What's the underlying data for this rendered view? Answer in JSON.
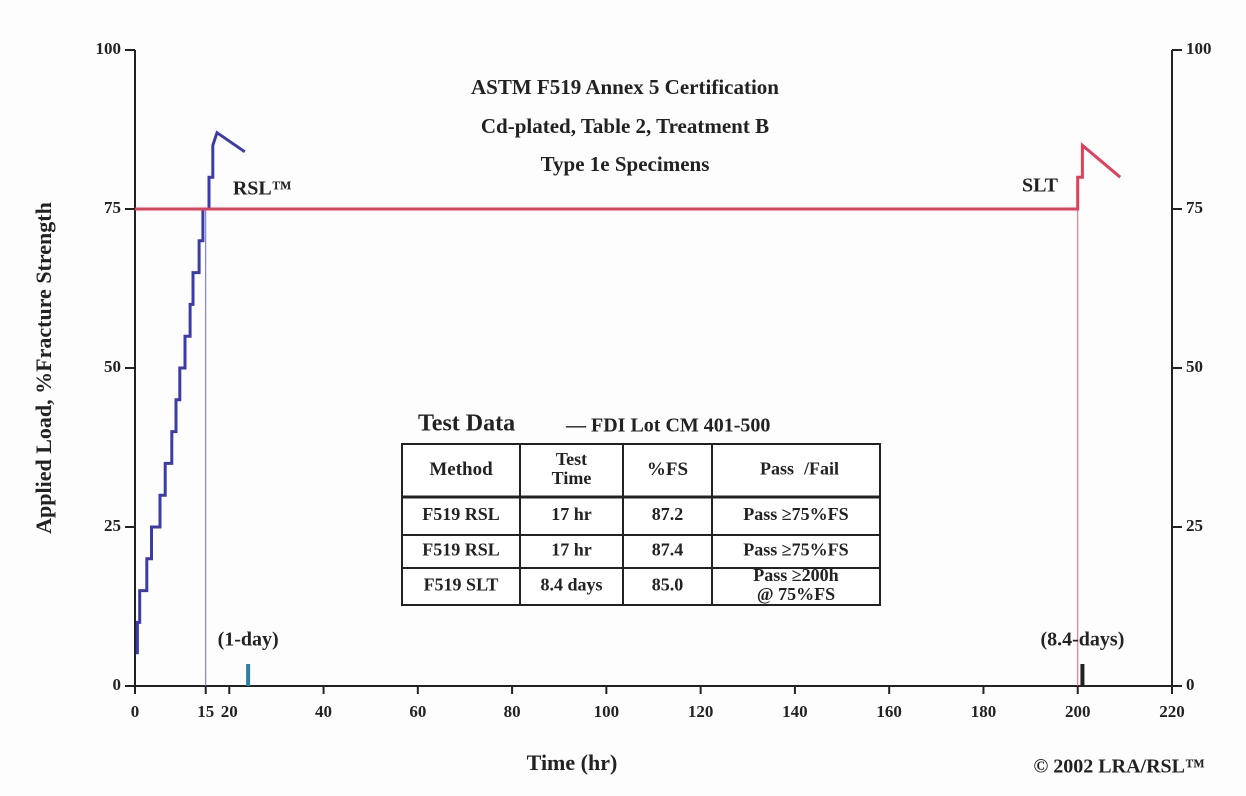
{
  "chart_data": {
    "type": "line",
    "title": [
      "ASTM F519 Annex 5 Certification",
      "Cd-plated, Table 2, Treatment B",
      "Type 1e Specimens"
    ],
    "xlabel": "Time (hr)",
    "ylabel": "Applied Load, %Fracture Strength",
    "xlim": [
      0,
      220
    ],
    "xticks": [
      0,
      15,
      20,
      40,
      60,
      80,
      100,
      120,
      140,
      160,
      180,
      200,
      220
    ],
    "ylim": [
      0,
      100
    ],
    "yticks": [
      0,
      25,
      50,
      75,
      100
    ],
    "y2lim": [
      0,
      100
    ],
    "y2ticks": [
      0,
      25,
      50,
      75,
      100
    ],
    "grid": false,
    "series": [
      {
        "color": "#3c3ca8",
        "x": [
          0.5,
          0.5,
          1,
          1,
          2.5,
          2.5,
          3.5,
          3.5,
          5.3,
          5.3,
          6.4,
          6.4,
          7.8,
          7.8,
          8.7,
          8.7,
          9.5,
          9.5,
          10.6,
          10.6,
          11.7,
          11.7,
          12.3,
          12.3,
          13.6,
          13.6,
          14.4,
          14.4,
          15.7,
          15.7,
          16.5,
          16.5,
          17.4,
          23.3
        ],
        "values": [
          5,
          10,
          10,
          15,
          15,
          20,
          20,
          25,
          25,
          30,
          30,
          35,
          35,
          40,
          40,
          45,
          45,
          50,
          50,
          55,
          55,
          60,
          60,
          65,
          65,
          70,
          70,
          75,
          75,
          80,
          80,
          85,
          87,
          84
        ]
      },
      {
        "color": "#e0405a",
        "x": [
          0,
          200,
          200,
          201,
          201,
          209
        ],
        "values": [
          75,
          75,
          80,
          80,
          85,
          80
        ]
      }
    ],
    "reference_lines": [
      {
        "x": 15,
        "to": 75,
        "color": "#6a6ad0"
      },
      {
        "x": 200,
        "to": 75,
        "color": "#e86070"
      }
    ],
    "markers": [
      {
        "x": 24,
        "label": "(1-day)",
        "color": "#2a7fa0"
      },
      {
        "x": 201,
        "label": "(8.4-days)",
        "color": "#222222"
      }
    ],
    "annotations": [
      {
        "text": "RSL™",
        "x": 27,
        "y": 78
      },
      {
        "text": "SLT",
        "x": 192,
        "y": 78.5
      }
    ],
    "footer": "© 2002 LRA/RSL™"
  },
  "table": {
    "title": "Test Data",
    "subtitle": "— FDI Lot CM 401-500",
    "headers": [
      "Method",
      [
        "Test",
        "Time"
      ],
      "%FS",
      [
        "Pass",
        "/Fail"
      ]
    ],
    "rows": [
      [
        "F519 RSL",
        "17 hr",
        "87.2",
        [
          "Pass ≥75%FS"
        ]
      ],
      [
        "F519 RSL",
        "17 hr",
        "87.4",
        [
          "Pass ≥75%FS"
        ]
      ],
      [
        "F519 SLT",
        "8.4 days",
        "85.0",
        [
          "Pass ≥200h",
          "@ 75%FS"
        ]
      ]
    ]
  }
}
